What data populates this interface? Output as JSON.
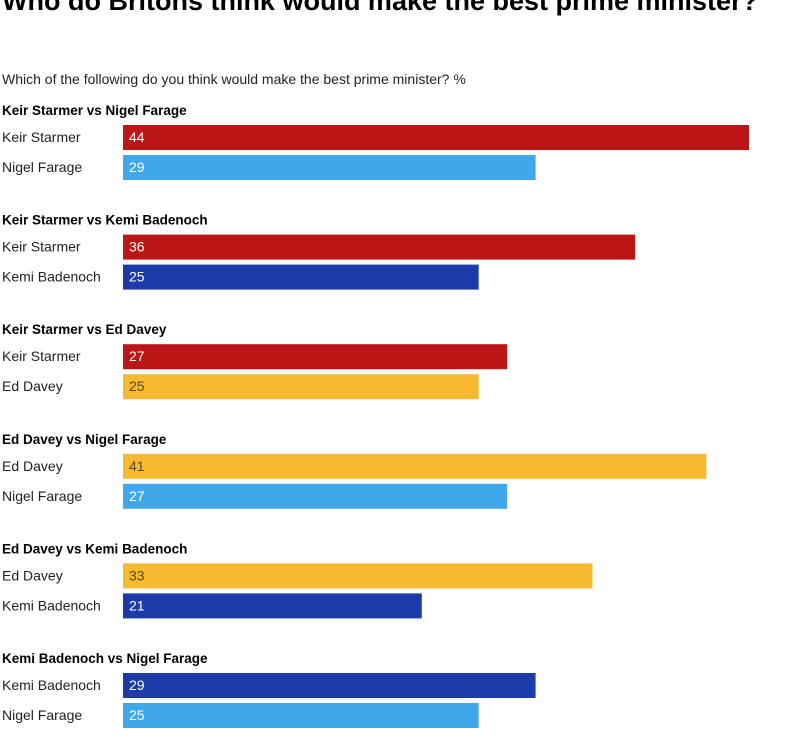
{
  "chart_data": {
    "type": "bar",
    "orientation": "horizontal",
    "title": "Who do Britons think would make the best prime minister?",
    "subtitle": "Which of the following do you think would make the best prime minister? %",
    "xlim": [
      0,
      44
    ],
    "colors": {
      "Keir Starmer": "#bb1515",
      "Nigel Farage": "#3fa7ea",
      "Kemi Badenoch": "#1c3aa9",
      "Ed Davey": "#f6b930"
    },
    "value_text_colors": {
      "Keir Starmer": "#ffffff",
      "Nigel Farage": "#ffffff",
      "Kemi Badenoch": "#ffffff",
      "Ed Davey": "#5a4a1c"
    },
    "groups": [
      {
        "title": "Keir Starmer vs Nigel Farage",
        "bars": [
          {
            "label": "Keir Starmer",
            "value": 44
          },
          {
            "label": "Nigel Farage",
            "value": 29
          }
        ]
      },
      {
        "title": "Keir Starmer vs Kemi Badenoch",
        "bars": [
          {
            "label": "Keir Starmer",
            "value": 36
          },
          {
            "label": "Kemi Badenoch",
            "value": 25
          }
        ]
      },
      {
        "title": "Keir Starmer vs Ed Davey",
        "bars": [
          {
            "label": "Keir Starmer",
            "value": 27
          },
          {
            "label": "Ed Davey",
            "value": 25
          }
        ]
      },
      {
        "title": "Ed Davey vs Nigel Farage",
        "bars": [
          {
            "label": "Ed Davey",
            "value": 41
          },
          {
            "label": "Nigel Farage",
            "value": 27
          }
        ]
      },
      {
        "title": "Ed Davey vs Kemi Badenoch",
        "bars": [
          {
            "label": "Ed Davey",
            "value": 33
          },
          {
            "label": "Kemi Badenoch",
            "value": 21
          }
        ]
      },
      {
        "title": "Kemi Badenoch vs Nigel Farage",
        "bars": [
          {
            "label": "Kemi Badenoch",
            "value": 29
          },
          {
            "label": "Nigel Farage",
            "value": 25
          }
        ]
      }
    ]
  }
}
